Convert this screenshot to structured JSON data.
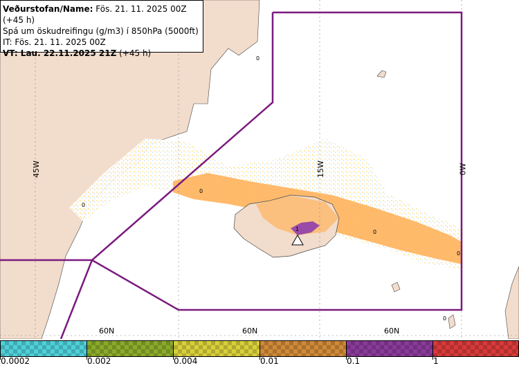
{
  "header": {
    "line1_bold": "Veðurstofan/Name:",
    "line1_rest": " Fös. 21. 11. 2025 00Z (+45 h)",
    "line2": "Spá um öskudreifingu (g/m3) í 850hPa (5000ft)",
    "line3": "IT: Fös. 21. 11. 2025 00Z",
    "line4_bold": "VT: Lau. 22.11.2025 21Z",
    "line4_rest": " (+45 h)"
  },
  "grid_labels": {
    "lon_45w": "45W",
    "lon_15w": "15W",
    "lon_0w": "0W",
    "lat_60n_a": "60N",
    "lat_60n_b": "60N",
    "lat_60n_c": "60N"
  },
  "contour_labels": {
    "c1": "0",
    "c2": "0",
    "c3": "0",
    "c4": "0",
    "c5": "0",
    "c6": "1",
    "c7": "0"
  },
  "legend": {
    "colors": [
      "#4fd0d8",
      "#8aab2a",
      "#d8d03a",
      "#d08a38",
      "#8a3a9a",
      "#d83a3a"
    ],
    "ticks": [
      "0.0002",
      "0.002",
      "0.004",
      "0.01",
      "0.1",
      "1"
    ]
  }
}
